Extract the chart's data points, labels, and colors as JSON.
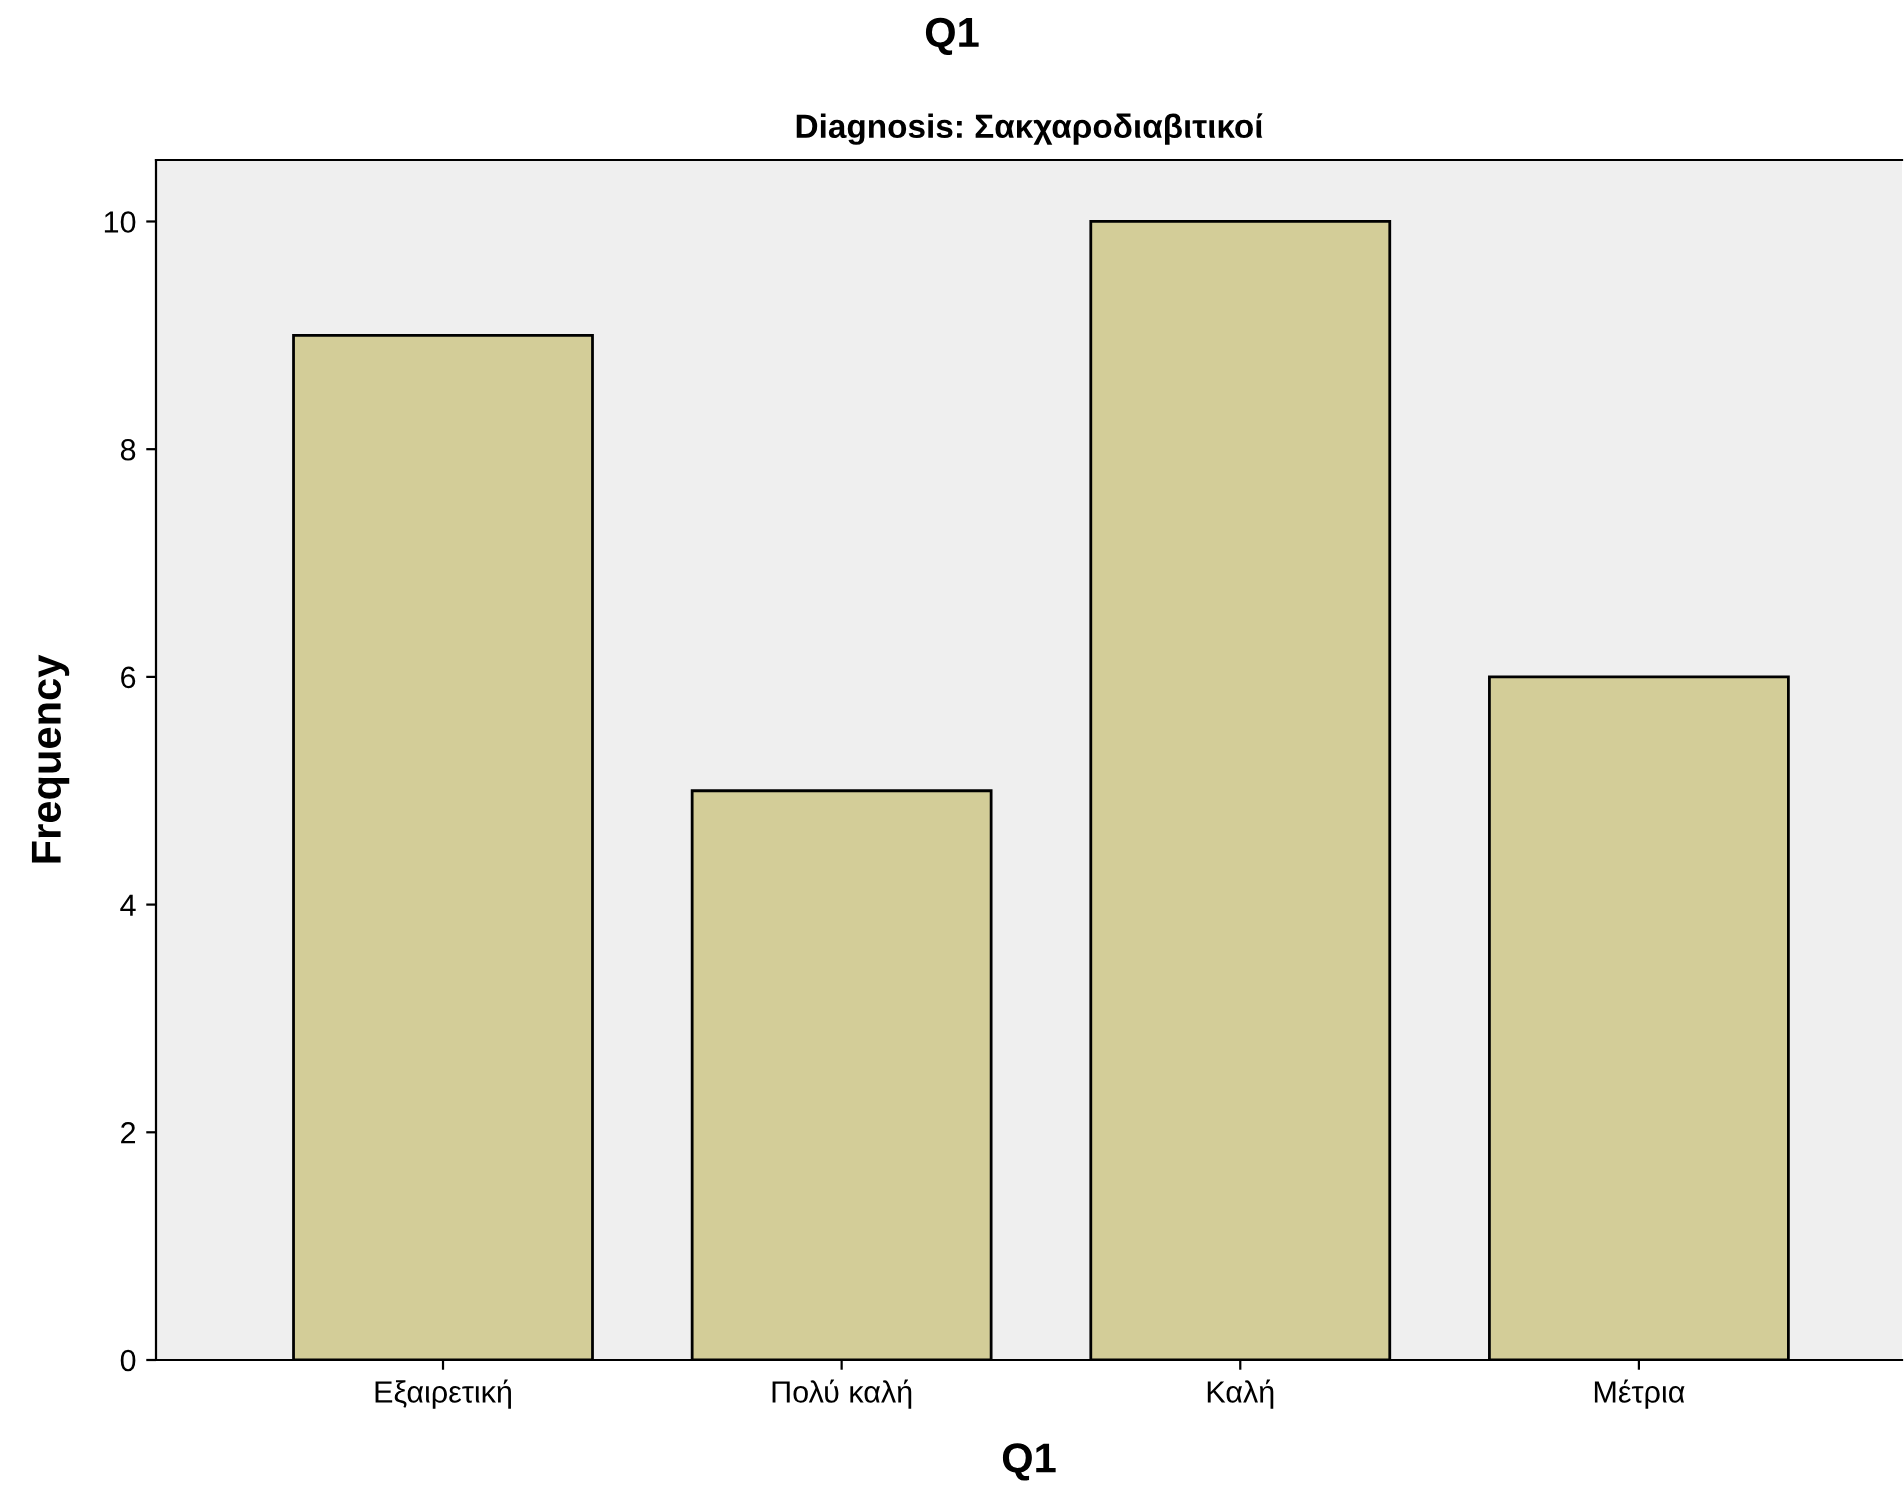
{
  "chart_data": {
    "type": "bar",
    "title": "Q1",
    "subtitle": "Diagnosis: Σακχαροδιαβιτικοί",
    "xlabel": "Q1",
    "ylabel": "Frequency",
    "categories": [
      "Εξαιρετική",
      "Πολύ καλή",
      "Καλή",
      "Μέτρια"
    ],
    "values": [
      9,
      5,
      10,
      6
    ],
    "color": "#d3cd98",
    "ylim": [
      0,
      10.54
    ],
    "yticks": [
      0,
      2,
      4,
      6,
      8,
      10
    ],
    "grid": false,
    "legend": false
  }
}
